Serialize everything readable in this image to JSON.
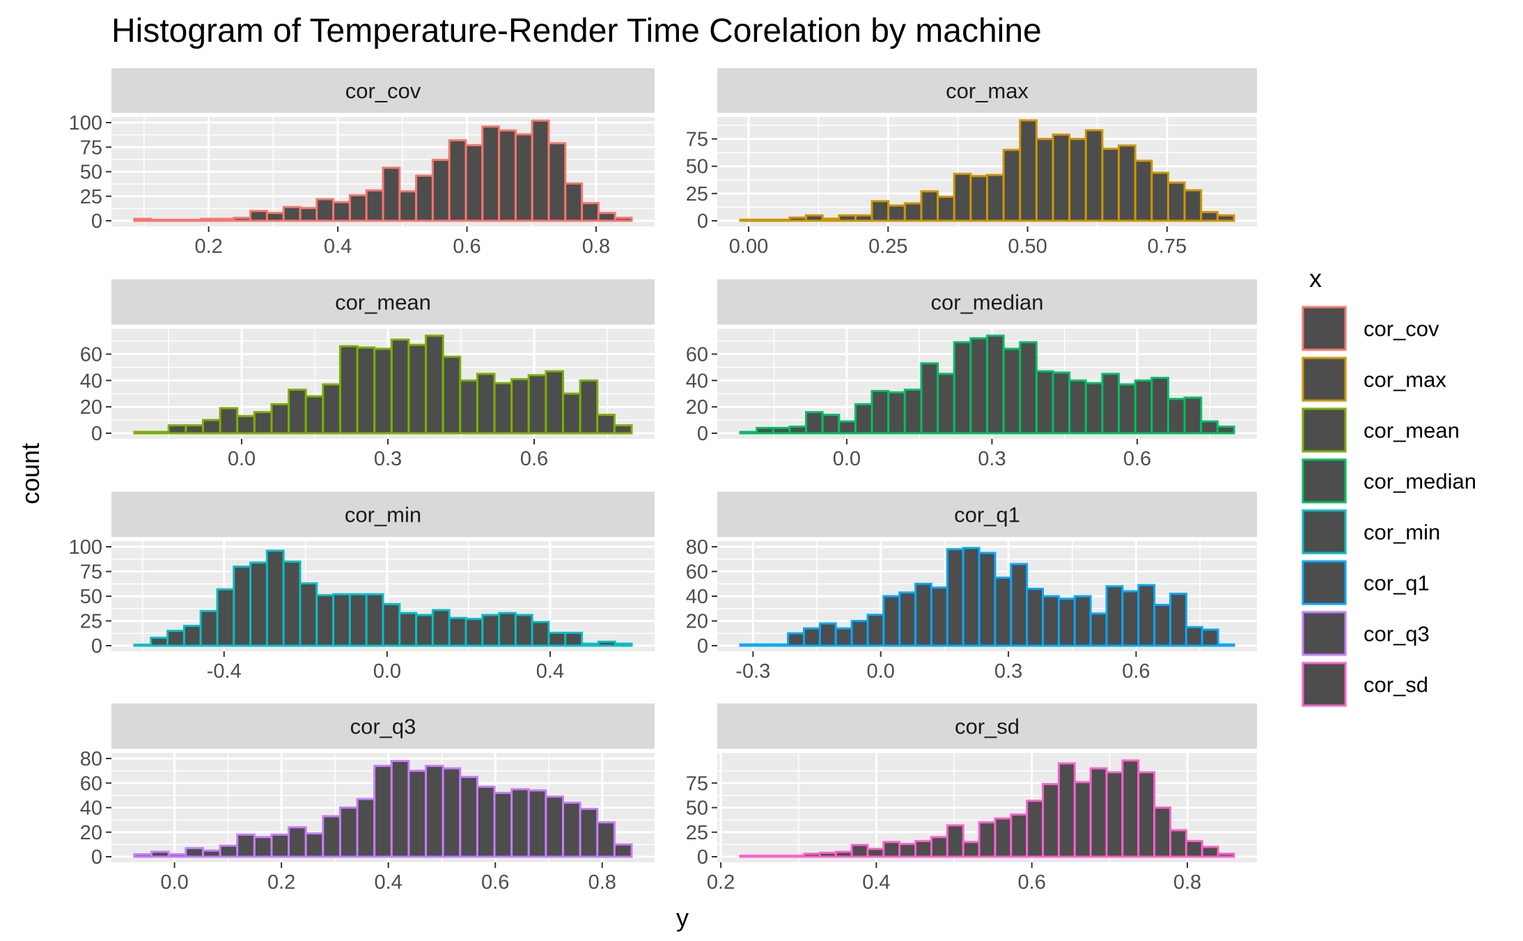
{
  "chart_data": {
    "type": "bar",
    "subtype": "histogram-facets",
    "title": "Histogram of Temperature-Render Time Corelation by machine",
    "xlabel": "y",
    "ylabel": "count",
    "legend": {
      "title": "x",
      "position": "right",
      "entries": [
        "cor_cov",
        "cor_max",
        "cor_mean",
        "cor_median",
        "cor_min",
        "cor_q1",
        "cor_q3",
        "cor_sd"
      ]
    },
    "grid": true,
    "colors": {
      "cor_cov": "#F8766D",
      "cor_max": "#CD9600",
      "cor_mean": "#7CAE00",
      "cor_median": "#00BE67",
      "cor_min": "#00BFC4",
      "cor_q1": "#00A9FF",
      "cor_q3": "#C77CFF",
      "cor_sd": "#FF61CC",
      "bar_fill": "#4D4D4D",
      "panel_bg": "#EBEBEB",
      "strip_bg": "#D9D9D9",
      "grid": "#FFFFFF"
    },
    "facets": [
      {
        "name": "cor_cov",
        "xlim": [
          0.085,
          0.855
        ],
        "ylim": [
          0,
          100
        ],
        "xticks": [
          0.2,
          0.4,
          0.6,
          0.8
        ],
        "xtick_labels": [
          "0.2",
          "0.4",
          "0.6",
          "0.8"
        ],
        "yticks": [
          0,
          25,
          50,
          75,
          100
        ],
        "ytick_labels": [
          "0",
          "25",
          "50",
          "75",
          "100"
        ],
        "counts": [
          2,
          1,
          1,
          1,
          2,
          2,
          3,
          10,
          8,
          14,
          13,
          22,
          19,
          26,
          31,
          54,
          30,
          46,
          62,
          82,
          77,
          96,
          92,
          88,
          102,
          79,
          38,
          18,
          8,
          3
        ]
      },
      {
        "name": "cor_max",
        "xlim": [
          -0.015,
          0.87
        ],
        "ylim": [
          0,
          90
        ],
        "xticks": [
          0.0,
          0.25,
          0.5,
          0.75
        ],
        "xtick_labels": [
          "0.00",
          "0.25",
          "0.50",
          "0.75"
        ],
        "yticks": [
          0,
          25,
          50,
          75
        ],
        "ytick_labels": [
          "0",
          "25",
          "50",
          "75"
        ],
        "counts": [
          1,
          1,
          1,
          3,
          5,
          2,
          5,
          5,
          18,
          14,
          16,
          27,
          22,
          43,
          41,
          42,
          65,
          92,
          75,
          79,
          75,
          83,
          66,
          69,
          55,
          44,
          35,
          28,
          8,
          5
        ]
      },
      {
        "name": "cor_mean",
        "xlim": [
          -0.22,
          0.8
        ],
        "ylim": [
          0,
          75
        ],
        "xticks": [
          0.0,
          0.3,
          0.6
        ],
        "xtick_labels": [
          "0.0",
          "0.3",
          "0.6"
        ],
        "yticks": [
          0,
          20,
          40,
          60
        ],
        "ytick_labels": [
          "0",
          "20",
          "40",
          "60"
        ],
        "counts": [
          1,
          1,
          6,
          6,
          10,
          19,
          13,
          16,
          22,
          33,
          28,
          37,
          66,
          65,
          64,
          71,
          67,
          74,
          58,
          40,
          45,
          38,
          41,
          44,
          47,
          30,
          40,
          14,
          6
        ]
      },
      {
        "name": "cor_median",
        "xlim": [
          -0.22,
          0.8
        ],
        "ylim": [
          0,
          75
        ],
        "xticks": [
          0.0,
          0.3,
          0.6
        ],
        "xtick_labels": [
          "0.0",
          "0.3",
          "0.6"
        ],
        "yticks": [
          0,
          20,
          40,
          60
        ],
        "ytick_labels": [
          "0",
          "20",
          "40",
          "60"
        ],
        "counts": [
          1,
          4,
          4,
          5,
          16,
          14,
          9,
          22,
          32,
          31,
          33,
          53,
          45,
          69,
          72,
          74,
          64,
          69,
          47,
          46,
          40,
          38,
          45,
          37,
          40,
          42,
          26,
          27,
          9,
          5
        ]
      },
      {
        "name": "cor_min",
        "xlim": [
          -0.62,
          0.6
        ],
        "ylim": [
          0,
          100
        ],
        "xticks": [
          -0.4,
          0.0,
          0.4
        ],
        "xtick_labels": [
          "-0.4",
          "0.0",
          "0.4"
        ],
        "yticks": [
          0,
          25,
          50,
          75,
          100
        ],
        "ytick_labels": [
          "0",
          "25",
          "50",
          "75",
          "100"
        ],
        "counts": [
          1,
          8,
          15,
          20,
          35,
          57,
          80,
          84,
          96,
          85,
          63,
          51,
          52,
          52,
          52,
          42,
          33,
          31,
          36,
          28,
          27,
          31,
          33,
          31,
          24,
          13,
          13,
          2,
          4,
          2
        ]
      },
      {
        "name": "cor_q1",
        "xlim": [
          -0.33,
          0.83
        ],
        "ylim": [
          0,
          80
        ],
        "xticks": [
          -0.3,
          0.0,
          0.3,
          0.6
        ],
        "xtick_labels": [
          "-0.3",
          "0.0",
          "0.3",
          "0.6"
        ],
        "yticks": [
          0,
          20,
          40,
          60,
          80
        ],
        "ytick_labels": [
          "0",
          "20",
          "40",
          "60",
          "80"
        ],
        "counts": [
          1,
          1,
          1,
          10,
          14,
          18,
          14,
          20,
          25,
          40,
          43,
          50,
          47,
          78,
          79,
          75,
          55,
          66,
          46,
          40,
          38,
          40,
          26,
          48,
          44,
          49,
          33,
          42,
          15,
          13,
          1
        ]
      },
      {
        "name": "cor_q3",
        "xlim": [
          -0.075,
          0.855
        ],
        "ylim": [
          0,
          80
        ],
        "xticks": [
          0.0,
          0.2,
          0.4,
          0.6,
          0.8
        ],
        "xtick_labels": [
          "0.0",
          "0.2",
          "0.4",
          "0.6",
          "0.8"
        ],
        "yticks": [
          0,
          20,
          40,
          60,
          80
        ],
        "ytick_labels": [
          "0",
          "20",
          "40",
          "60",
          "80"
        ],
        "counts": [
          2,
          4,
          2,
          7,
          5,
          9,
          18,
          16,
          18,
          24,
          19,
          33,
          40,
          47,
          74,
          78,
          70,
          74,
          72,
          65,
          57,
          52,
          55,
          54,
          49,
          44,
          39,
          28,
          10
        ]
      },
      {
        "name": "cor_sd",
        "xlim": [
          0.225,
          0.86
        ],
        "ylim": [
          0,
          100
        ],
        "xticks": [
          0.2,
          0.4,
          0.6,
          0.8
        ],
        "xtick_labels": [
          "0.2",
          "0.4",
          "0.6",
          "0.8"
        ],
        "yticks": [
          0,
          25,
          50,
          75
        ],
        "ytick_labels": [
          "0",
          "25",
          "50",
          "75"
        ],
        "counts": [
          1,
          1,
          1,
          1,
          3,
          4,
          5,
          12,
          8,
          15,
          13,
          16,
          20,
          32,
          15,
          35,
          39,
          43,
          57,
          74,
          95,
          76,
          90,
          86,
          98,
          86,
          50,
          27,
          16,
          10,
          3
        ]
      }
    ]
  }
}
